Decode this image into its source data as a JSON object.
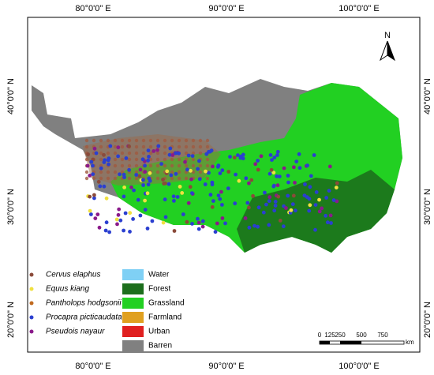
{
  "map": {
    "top_labels": [
      "80°0'0\" E",
      "90°0'0\" E",
      "100°0'0\" E"
    ],
    "bottom_labels": [
      "80°0'0\" E",
      "90°0'0\" E",
      "100°0'0\" E"
    ],
    "left_labels": [
      "40°0'0\" N",
      "30°0'0\" N",
      "20°0'0\" N"
    ],
    "right_labels": [
      "40°0'0\" N",
      "30°0'0\" N",
      "20°0'0\" N"
    ],
    "north": "N",
    "species": [
      "Cervus elaphus",
      "Equus kiang",
      "Pantholops hodgsonii",
      "Procapra picticaudata",
      "Pseudois nayaur"
    ],
    "land_cover": [
      "Water",
      "Forest",
      "Grassland",
      "Farmland",
      "Urban",
      "Barren"
    ],
    "scale": {
      "labels": [
        "0",
        "125",
        "250",
        "500",
        "750"
      ],
      "unit": "km"
    }
  }
}
